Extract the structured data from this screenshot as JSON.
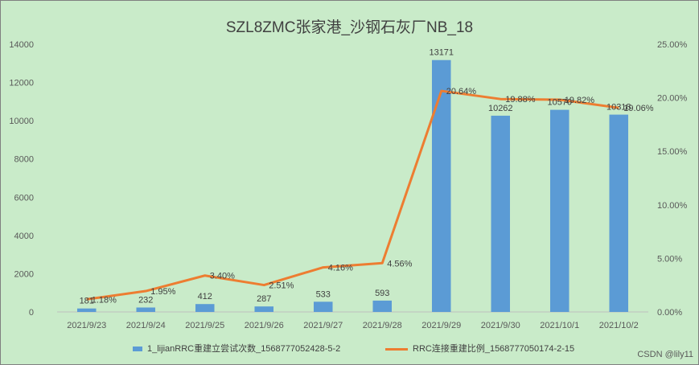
{
  "chart_data": {
    "type": "bar",
    "title": "SZL8ZMC张家港_沙钢石灰厂NB_18",
    "categories": [
      "2021/9/23",
      "2021/9/24",
      "2021/9/25",
      "2021/9/26",
      "2021/9/27",
      "2021/9/28",
      "2021/9/29",
      "2021/9/30",
      "2021/10/1",
      "2021/10/2"
    ],
    "series": [
      {
        "name": "1_lijianRRC重建立尝试次数_1568777052428-5-2",
        "type": "bar",
        "axis": "left",
        "values": [
          181,
          232,
          412,
          287,
          533,
          593,
          13171,
          10262,
          10570,
          10318
        ],
        "labels": [
          "181",
          "232",
          "412",
          "287",
          "533",
          "593",
          "13171",
          "10262",
          "10570",
          "10318"
        ]
      },
      {
        "name": "RRC连接重建比例_1568777050174-2-15",
        "type": "line",
        "axis": "right",
        "values": [
          1.18,
          1.95,
          3.4,
          2.51,
          4.16,
          4.56,
          20.64,
          19.88,
          19.82,
          19.06
        ],
        "labels": [
          "1.18%",
          "1.95%",
          "3.40%",
          "2.51%",
          "4.16%",
          "4.56%",
          "20.64%",
          "19.88%",
          "19.82%",
          "19.06%"
        ]
      }
    ],
    "y_left": {
      "min": 0,
      "max": 14000,
      "ticks": [
        "0",
        "2000",
        "4000",
        "6000",
        "8000",
        "10000",
        "12000",
        "14000"
      ]
    },
    "y_right": {
      "min": 0,
      "max": 25,
      "ticks": [
        "0.00%",
        "5.00%",
        "10.00%",
        "15.00%",
        "20.00%",
        "25.00%"
      ]
    },
    "grid": false,
    "legend_position": "bottom",
    "colors": {
      "bar": "#5b9bd5",
      "line": "#ed7d31",
      "background": "#c9ebc9"
    }
  },
  "watermark": "CSDN @lily11"
}
